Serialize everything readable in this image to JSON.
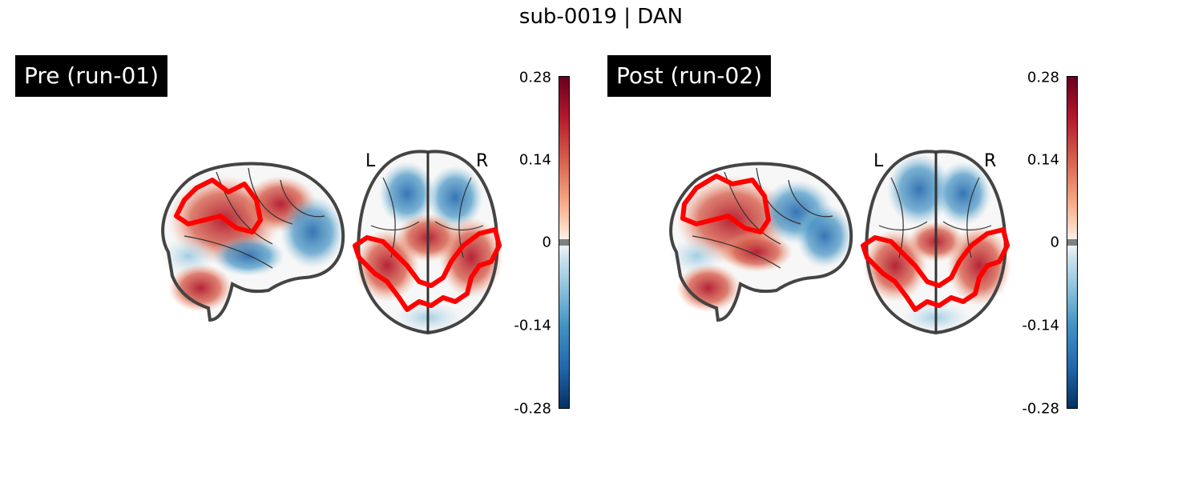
{
  "figure": {
    "title": "sub-0019 | DAN"
  },
  "panels": [
    {
      "label": "Pre (run-01)",
      "colorbar": {
        "ticks": [
          "0.28",
          "0.14",
          "0",
          "-0.14",
          "-0.28"
        ]
      },
      "orientation": {
        "left": "L",
        "right": "R"
      }
    },
    {
      "label": "Post (run-02)",
      "colorbar": {
        "ticks": [
          "0.28",
          "0.14",
          "0",
          "-0.14",
          "-0.28"
        ]
      },
      "orientation": {
        "left": "L",
        "right": "R"
      }
    }
  ],
  "colors": {
    "outline": "#ff0000",
    "positive": "#b2182b",
    "negative": "#2166ac"
  }
}
